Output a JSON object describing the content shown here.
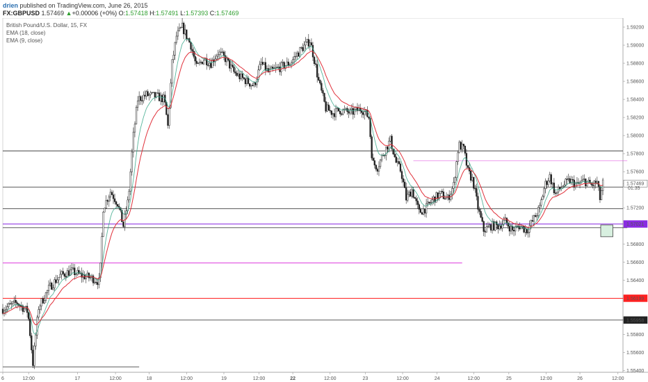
{
  "header": {
    "username": "drien",
    "published": " published on TradingView.com, June 26, 2015",
    "symbol": "FX:GBPUSD",
    "last": "1.57469",
    "change": "+0.00006 (+0%)",
    "o_label": "O:",
    "o_value": "1.57418",
    "h_label": "H:",
    "h_value": "1.57491",
    "l_label": "L:",
    "l_value": "1.57393",
    "c_label": "C:",
    "c_value": "1.57469"
  },
  "legend": {
    "title": "British Pound/U.S. Dollar, 15, FX",
    "ema1": "EMA (18, close)",
    "ema2": "EMA (9, close)"
  },
  "colors": {
    "candle": "#222222",
    "ema18": "#e0303a",
    "ema9": "#3aa88a",
    "resistance": "#444444",
    "magenta": "#e050e0",
    "purple": "#8a2be2",
    "red": "#ff2020",
    "box_fill": "#d8f0e0"
  },
  "chart_data": {
    "type": "candlestick",
    "symbol": "FX:GBPUSD",
    "interval": "15",
    "ylim": [
      1.5538,
      1.593
    ],
    "y_ticks": [
      "1.59200",
      "1.59000",
      "1.58800",
      "1.58600",
      "1.58400",
      "1.58200",
      "1.58000",
      "1.57800",
      "1.57600",
      "1.57469",
      "1.57200",
      "1.57021",
      "1.56800",
      "1.56600",
      "1.56400",
      "1.56199",
      "1.55958",
      "1.55800",
      "1.55600",
      "1.55400"
    ],
    "x_ticks": [
      "6",
      "12:00",
      "17",
      "12:00",
      "18",
      "12:00",
      "19",
      "12:00",
      "22",
      "12:00",
      "23",
      "12:00",
      "24",
      "12:00",
      "25",
      "12:00",
      "26",
      "12:00"
    ],
    "x_tick_index": [
      0,
      36,
      104,
      157,
      204,
      256,
      308,
      357,
      404,
      456,
      505,
      557,
      605,
      656,
      705,
      757,
      804,
      857
    ],
    "bar_count": 864,
    "path_points": [
      [
        0,
        1.5608
      ],
      [
        20,
        1.5615
      ],
      [
        35,
        1.5605
      ],
      [
        42,
        1.5548
      ],
      [
        50,
        1.561
      ],
      [
        65,
        1.5632
      ],
      [
        80,
        1.5645
      ],
      [
        95,
        1.565
      ],
      [
        110,
        1.5645
      ],
      [
        125,
        1.5642
      ],
      [
        135,
        1.5638
      ],
      [
        140,
        1.572
      ],
      [
        150,
        1.5738
      ],
      [
        160,
        1.5725
      ],
      [
        168,
        1.57
      ],
      [
        175,
        1.573
      ],
      [
        182,
        1.58
      ],
      [
        188,
        1.584
      ],
      [
        200,
        1.5845
      ],
      [
        215,
        1.5843
      ],
      [
        225,
        1.584
      ],
      [
        230,
        1.581
      ],
      [
        236,
        1.588
      ],
      [
        242,
        1.591
      ],
      [
        250,
        1.592
      ],
      [
        262,
        1.59
      ],
      [
        270,
        1.5875
      ],
      [
        280,
        1.5885
      ],
      [
        290,
        1.588
      ],
      [
        300,
        1.5892
      ],
      [
        310,
        1.5885
      ],
      [
        322,
        1.587
      ],
      [
        330,
        1.5865
      ],
      [
        340,
        1.586
      ],
      [
        350,
        1.5855
      ],
      [
        360,
        1.588
      ],
      [
        370,
        1.587
      ],
      [
        385,
        1.5875
      ],
      [
        400,
        1.588
      ],
      [
        415,
        1.5895
      ],
      [
        428,
        1.5905
      ],
      [
        435,
        1.588
      ],
      [
        440,
        1.586
      ],
      [
        450,
        1.583
      ],
      [
        460,
        1.5825
      ],
      [
        470,
        1.5828
      ],
      [
        485,
        1.5825
      ],
      [
        500,
        1.583
      ],
      [
        510,
        1.582
      ],
      [
        515,
        1.577
      ],
      [
        522,
        1.5765
      ],
      [
        530,
        1.578
      ],
      [
        540,
        1.5795
      ],
      [
        548,
        1.577
      ],
      [
        555,
        1.576
      ],
      [
        562,
        1.573
      ],
      [
        570,
        1.574
      ],
      [
        580,
        1.5715
      ],
      [
        590,
        1.572
      ],
      [
        600,
        1.573
      ],
      [
        610,
        1.5735
      ],
      [
        620,
        1.573
      ],
      [
        628,
        1.5745
      ],
      [
        635,
        1.579
      ],
      [
        642,
        1.5785
      ],
      [
        648,
        1.576
      ],
      [
        655,
        1.575
      ],
      [
        662,
        1.572
      ],
      [
        670,
        1.5695
      ],
      [
        680,
        1.57
      ],
      [
        690,
        1.57
      ],
      [
        700,
        1.5705
      ],
      [
        710,
        1.5695
      ],
      [
        720,
        1.57
      ],
      [
        730,
        1.5695
      ],
      [
        738,
        1.5705
      ],
      [
        748,
        1.572
      ],
      [
        755,
        1.5745
      ],
      [
        762,
        1.5755
      ],
      [
        770,
        1.5735
      ],
      [
        780,
        1.5745
      ],
      [
        790,
        1.575
      ],
      [
        800,
        1.5745
      ],
      [
        810,
        1.575
      ],
      [
        820,
        1.5745
      ],
      [
        828,
        1.5748
      ],
      [
        832,
        1.573
      ],
      [
        836,
        1.5747
      ]
    ],
    "horizontal_levels": [
      {
        "price": 1.5783,
        "style": "dark",
        "from_index": 0,
        "to_index": 864
      },
      {
        "price": 1.5743,
        "style": "dark",
        "from_index": 0,
        "to_index": 864
      },
      {
        "price": 1.5719,
        "style": "dark",
        "from_index": 0,
        "to_index": 864
      },
      {
        "price": 1.57021,
        "style": "purple",
        "from_index": 0,
        "to_index": 864,
        "label": "1.57021"
      },
      {
        "price": 1.5698,
        "style": "dark",
        "from_index": 0,
        "to_index": 870
      },
      {
        "price": 1.5659,
        "style": "magenta",
        "from_index": 0,
        "to_index": 640
      },
      {
        "price": 1.5772,
        "style": "magenta_dim",
        "from_index": 572,
        "to_index": 870
      },
      {
        "price": 1.56199,
        "style": "red",
        "from_index": 0,
        "to_index": 864,
        "label": "1.56199"
      },
      {
        "price": 1.55958,
        "style": "dark",
        "from_index": 0,
        "to_index": 864,
        "label": "1.55958"
      },
      {
        "price": 1.5544,
        "style": "dark",
        "from_index": 0,
        "to_index": 190
      }
    ],
    "current_price": "1.57469",
    "countdown": "01:35",
    "target_box": {
      "from_index": 833,
      "to_index": 850,
      "top": 1.5701,
      "bottom": 1.5688
    }
  }
}
